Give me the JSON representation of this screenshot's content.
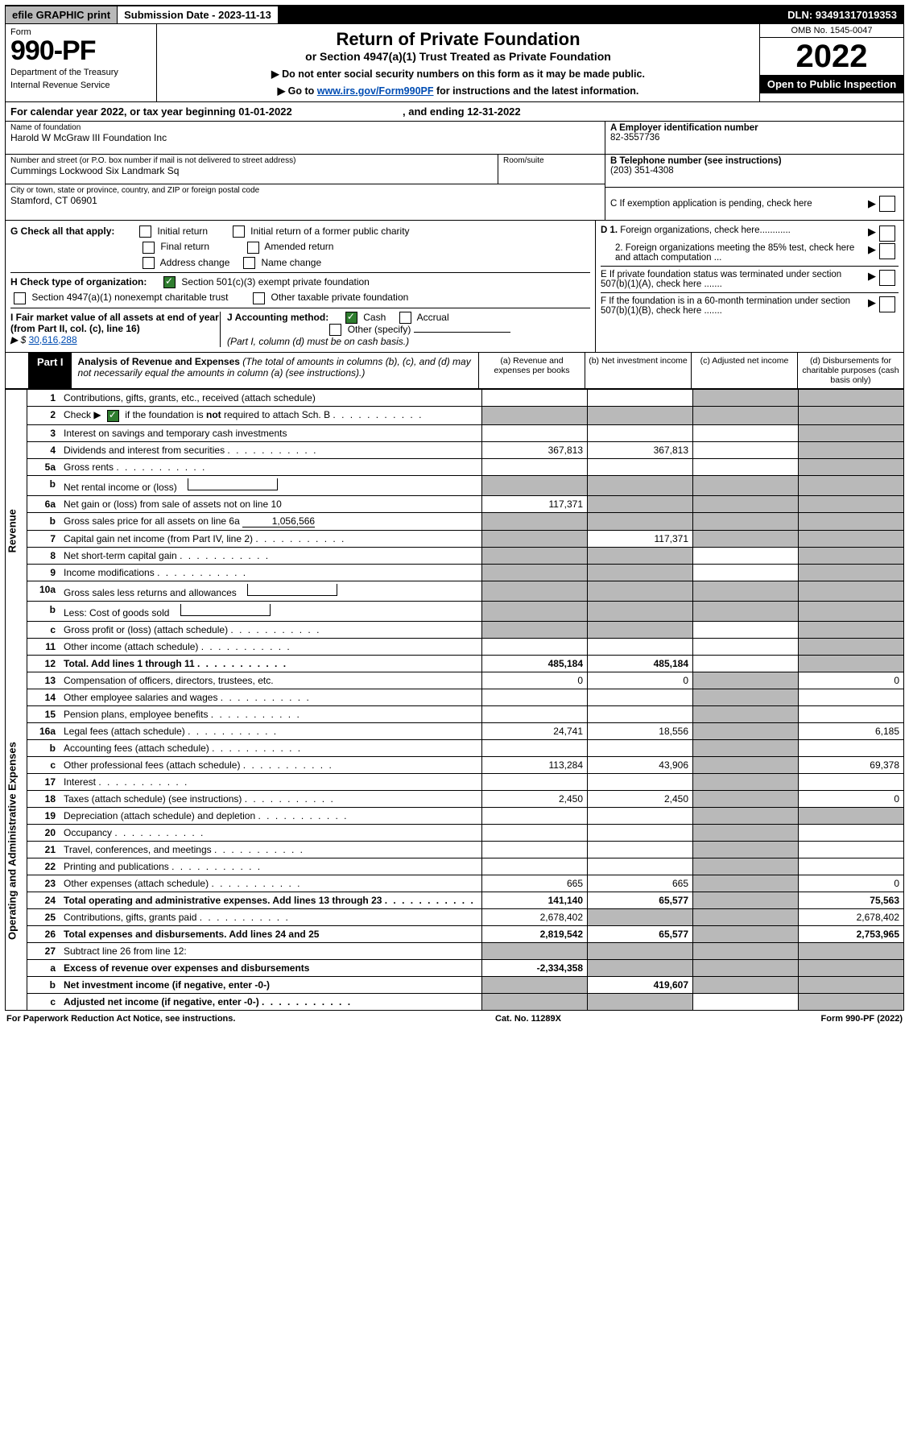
{
  "topbar": {
    "efile": "efile GRAPHIC print",
    "submission": "Submission Date - 2023-11-13",
    "dln": "DLN: 93491317019353"
  },
  "header": {
    "form_label": "Form",
    "form_no": "990-PF",
    "dept1": "Department of the Treasury",
    "dept2": "Internal Revenue Service",
    "title": "Return of Private Foundation",
    "subtitle": "or Section 4947(a)(1) Trust Treated as Private Foundation",
    "instr1": "▶ Do not enter social security numbers on this form as it may be made public.",
    "instr2_pre": "▶ Go to ",
    "instr2_link": "www.irs.gov/Form990PF",
    "instr2_post": " for instructions and the latest information.",
    "omb": "OMB No. 1545-0047",
    "year": "2022",
    "open": "Open to Public Inspection"
  },
  "calyear": {
    "text1": "For calendar year 2022, or tax year beginning 01-01-2022",
    "text2": ", and ending 12-31-2022"
  },
  "id": {
    "name_lbl": "Name of foundation",
    "name": "Harold W McGraw III Foundation Inc",
    "addr_lbl": "Number and street (or P.O. box number if mail is not delivered to street address)",
    "addr": "Cummings Lockwood Six Landmark Sq",
    "room_lbl": "Room/suite",
    "city_lbl": "City or town, state or province, country, and ZIP or foreign postal code",
    "city": "Stamford, CT  06901",
    "a_lbl": "A Employer identification number",
    "a_val": "82-3557736",
    "b_lbl": "B Telephone number (see instructions)",
    "b_val": "(203) 351-4308",
    "c_lbl": "C If exemption application is pending, check here"
  },
  "checks": {
    "g_label": "G Check all that apply:",
    "initial": "Initial return",
    "initial_former": "Initial return of a former public charity",
    "final": "Final return",
    "amended": "Amended return",
    "addr_change": "Address change",
    "name_change": "Name change",
    "h_label": "H Check type of organization:",
    "sec501": "Section 501(c)(3) exempt private foundation",
    "sec4947": "Section 4947(a)(1) nonexempt charitable trust",
    "other_taxable": "Other taxable private foundation",
    "i_label": "I Fair market value of all assets at end of year (from Part II, col. (c), line 16)",
    "i_prefix": "▶ $ ",
    "i_val": "30,616,288",
    "j_label": "J Accounting method:",
    "cash": "Cash",
    "accrual": "Accrual",
    "other_spec": "Other (specify)",
    "j_note": "(Part I, column (d) must be on cash basis.)",
    "d1": "D 1. Foreign organizations, check here............",
    "d2": "2. Foreign organizations meeting the 85% test, check here and attach computation ...",
    "e": "E   If private foundation status was terminated under section 507(b)(1)(A), check here .......",
    "f": "F   If the foundation is in a 60-month termination under section 507(b)(1)(B), check here ......."
  },
  "part1": {
    "tag": "Part I",
    "title": "Analysis of Revenue and Expenses",
    "note": " (The total of amounts in columns (b), (c), and (d) may not necessarily equal the amounts in column (a) (see instructions).)",
    "col_a": "(a)   Revenue and expenses per books",
    "col_b": "(b)   Net investment income",
    "col_c": "(c)   Adjusted net income",
    "col_d": "(d)   Disbursements for charitable purposes (cash basis only)"
  },
  "sections": {
    "revenue": "Revenue",
    "expenses": "Operating and Administrative Expenses"
  },
  "rows": [
    {
      "n": "1",
      "d": "Contributions, gifts, grants, etc., received (attach schedule)",
      "a": "",
      "b": "",
      "c": "grey",
      "dcol": "grey"
    },
    {
      "n": "2",
      "d": "Check ▶ ☑ if the foundation is not required to attach Sch. B",
      "a": "grey",
      "b": "grey",
      "c": "grey",
      "dcol": "grey",
      "dotless": true,
      "checked": true
    },
    {
      "n": "3",
      "d": "Interest on savings and temporary cash investments",
      "a": "",
      "b": "",
      "c": "",
      "dcol": "grey"
    },
    {
      "n": "4",
      "d": "Dividends and interest from securities",
      "a": "367,813",
      "b": "367,813",
      "c": "",
      "dcol": "grey",
      "dots": true
    },
    {
      "n": "5a",
      "d": "Gross rents",
      "a": "",
      "b": "",
      "c": "",
      "dcol": "grey",
      "dots": true
    },
    {
      "n": "b",
      "d": "Net rental income or (loss)",
      "a": "grey",
      "b": "grey",
      "c": "grey",
      "dcol": "grey",
      "inlinebox": true
    },
    {
      "n": "6a",
      "d": "Net gain or (loss) from sale of assets not on line 10",
      "a": "117,371",
      "b": "grey",
      "c": "grey",
      "dcol": "grey"
    },
    {
      "n": "b",
      "d": "Gross sales price for all assets on line 6a",
      "a": "grey",
      "b": "grey",
      "c": "grey",
      "dcol": "grey",
      "inlineval": "1,056,566"
    },
    {
      "n": "7",
      "d": "Capital gain net income (from Part IV, line 2)",
      "a": "grey",
      "b": "117,371",
      "c": "grey",
      "dcol": "grey",
      "dots": true
    },
    {
      "n": "8",
      "d": "Net short-term capital gain",
      "a": "grey",
      "b": "grey",
      "c": "",
      "dcol": "grey",
      "dots": true
    },
    {
      "n": "9",
      "d": "Income modifications",
      "a": "grey",
      "b": "grey",
      "c": "",
      "dcol": "grey",
      "dots": true
    },
    {
      "n": "10a",
      "d": "Gross sales less returns and allowances",
      "a": "grey",
      "b": "grey",
      "c": "grey",
      "dcol": "grey",
      "inlinebox": true
    },
    {
      "n": "b",
      "d": "Less: Cost of goods sold",
      "a": "grey",
      "b": "grey",
      "c": "grey",
      "dcol": "grey",
      "inlinebox": true,
      "dots": true
    },
    {
      "n": "c",
      "d": "Gross profit or (loss) (attach schedule)",
      "a": "grey",
      "b": "grey",
      "c": "",
      "dcol": "grey",
      "dots": true
    },
    {
      "n": "11",
      "d": "Other income (attach schedule)",
      "a": "",
      "b": "",
      "c": "",
      "dcol": "grey",
      "dots": true
    },
    {
      "n": "12",
      "d": "Total. Add lines 1 through 11",
      "a": "485,184",
      "b": "485,184",
      "c": "",
      "dcol": "grey",
      "dots": true,
      "bold": true
    }
  ],
  "exp_rows": [
    {
      "n": "13",
      "d": "Compensation of officers, directors, trustees, etc.",
      "a": "0",
      "b": "0",
      "c": "grey",
      "dcol": "0"
    },
    {
      "n": "14",
      "d": "Other employee salaries and wages",
      "a": "",
      "b": "",
      "c": "grey",
      "dcol": "",
      "dots": true
    },
    {
      "n": "15",
      "d": "Pension plans, employee benefits",
      "a": "",
      "b": "",
      "c": "grey",
      "dcol": "",
      "dots": true
    },
    {
      "n": "16a",
      "d": "Legal fees (attach schedule)",
      "a": "24,741",
      "b": "18,556",
      "c": "grey",
      "dcol": "6,185",
      "dots": true
    },
    {
      "n": "b",
      "d": "Accounting fees (attach schedule)",
      "a": "",
      "b": "",
      "c": "grey",
      "dcol": "",
      "dots": true
    },
    {
      "n": "c",
      "d": "Other professional fees (attach schedule)",
      "a": "113,284",
      "b": "43,906",
      "c": "grey",
      "dcol": "69,378",
      "dots": true
    },
    {
      "n": "17",
      "d": "Interest",
      "a": "",
      "b": "",
      "c": "grey",
      "dcol": "",
      "dots": true
    },
    {
      "n": "18",
      "d": "Taxes (attach schedule) (see instructions)",
      "a": "2,450",
      "b": "2,450",
      "c": "grey",
      "dcol": "0",
      "dots": true
    },
    {
      "n": "19",
      "d": "Depreciation (attach schedule) and depletion",
      "a": "",
      "b": "",
      "c": "grey",
      "dcol": "grey",
      "dots": true
    },
    {
      "n": "20",
      "d": "Occupancy",
      "a": "",
      "b": "",
      "c": "grey",
      "dcol": "",
      "dots": true
    },
    {
      "n": "21",
      "d": "Travel, conferences, and meetings",
      "a": "",
      "b": "",
      "c": "grey",
      "dcol": "",
      "dots": true
    },
    {
      "n": "22",
      "d": "Printing and publications",
      "a": "",
      "b": "",
      "c": "grey",
      "dcol": "",
      "dots": true
    },
    {
      "n": "23",
      "d": "Other expenses (attach schedule)",
      "a": "665",
      "b": "665",
      "c": "grey",
      "dcol": "0",
      "dots": true
    },
    {
      "n": "24",
      "d": "Total operating and administrative expenses. Add lines 13 through 23",
      "a": "141,140",
      "b": "65,577",
      "c": "grey",
      "dcol": "75,563",
      "dots": true,
      "bold": true
    },
    {
      "n": "25",
      "d": "Contributions, gifts, grants paid",
      "a": "2,678,402",
      "b": "grey",
      "c": "grey",
      "dcol": "2,678,402",
      "dots": true
    },
    {
      "n": "26",
      "d": "Total expenses and disbursements. Add lines 24 and 25",
      "a": "2,819,542",
      "b": "65,577",
      "c": "grey",
      "dcol": "2,753,965",
      "bold": true
    }
  ],
  "net_rows": [
    {
      "n": "27",
      "d": "Subtract line 26 from line 12:",
      "a": "grey",
      "b": "grey",
      "c": "grey",
      "dcol": "grey"
    },
    {
      "n": "a",
      "d": "Excess of revenue over expenses and disbursements",
      "a": "-2,334,358",
      "b": "grey",
      "c": "grey",
      "dcol": "grey",
      "bold": true
    },
    {
      "n": "b",
      "d": "Net investment income (if negative, enter -0-)",
      "a": "grey",
      "b": "419,607",
      "c": "grey",
      "dcol": "grey",
      "bold": true
    },
    {
      "n": "c",
      "d": "Adjusted net income (if negative, enter -0-)",
      "a": "grey",
      "b": "grey",
      "c": "",
      "dcol": "grey",
      "bold": true,
      "dots": true
    }
  ],
  "footer": {
    "left": "For Paperwork Reduction Act Notice, see instructions.",
    "mid": "Cat. No. 11289X",
    "right": "Form 990-PF (2022)"
  }
}
